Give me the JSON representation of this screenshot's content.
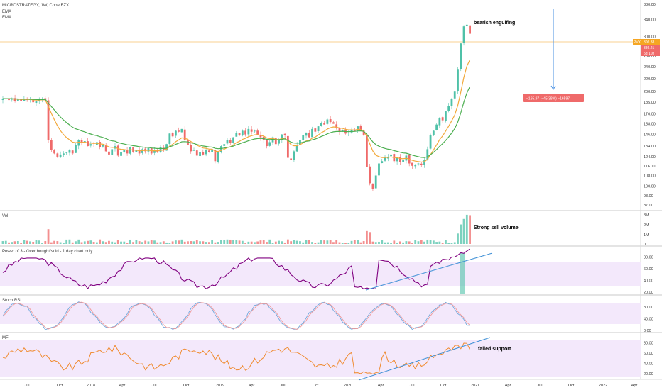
{
  "chart_title": "MICROSTRATEGY, 1W, Cboe BZX",
  "overlay_labels": [
    "EMA",
    "EMA"
  ],
  "colors": {
    "up": "#4fc1a8",
    "down": "#ef6a6a",
    "ema_fast": "#f2a93b",
    "ema_slow": "#4caf50",
    "power": "#800080",
    "stoch_k": "#6fa8dc",
    "stoch_d": "#ef9a9a",
    "mfi": "#f08a2e",
    "band": "#f3e8fb",
    "trendline": "#3d8fd6",
    "measure": "#4a90e2",
    "price_line": "#f5a623",
    "measure_label_bg": "#ef6a6a"
  },
  "annotations": {
    "main": "bearish engulfing",
    "volume": "Strong sell volume",
    "mfi": "failed support",
    "measure": "−165.97 (−45.38%) −16597"
  },
  "price_tags": {
    "last": "306.38",
    "second": "386.21",
    "third": "5d 10h",
    "prefix": "PVX"
  },
  "time_axis": [
    "Jul",
    "Oct",
    "2018",
    "Apr",
    "Jul",
    "Oct",
    "2019",
    "Apr",
    "Jul",
    "Oct",
    "2020",
    "Apr",
    "Jul",
    "Oct",
    "2021",
    "Apr",
    "Jul",
    "Oct",
    "2022",
    "Apr"
  ],
  "panes": {
    "volume": {
      "title": "Vol",
      "ticks": [
        "3M",
        "2M",
        "1M",
        "0"
      ]
    },
    "power": {
      "title": "Power of 3 - Over bought/sold - 1 day chart only",
      "ticks": [
        "80.00",
        "60.00",
        "40.00",
        "20.00"
      ]
    },
    "stoch": {
      "title": "Stoch RSI",
      "ticks": [
        "80.00",
        "40.00",
        "0.00"
      ]
    },
    "mfi": {
      "title": "MFI",
      "ticks": [
        "80.00",
        "60.00",
        "40.00",
        "20.00"
      ]
    }
  },
  "chart_data": {
    "type": "candlestick",
    "title": "MICROSTRATEGY, 1W, Cboe BZX",
    "price_axis_ticks": [
      380,
      340,
      300,
      260,
      240,
      220,
      200,
      185,
      170,
      158,
      146,
      134,
      124,
      116,
      108,
      100,
      93,
      87
    ],
    "price_scale": "log",
    "y_range": [
      82,
      390
    ],
    "last_price": 306.38,
    "closes": [
      190,
      190,
      188,
      190,
      187,
      189,
      187,
      190,
      188,
      189,
      185,
      187,
      188,
      190,
      188,
      140,
      130,
      127,
      124,
      126,
      127,
      128,
      130,
      127,
      135,
      140,
      137,
      139,
      134,
      136,
      135,
      138,
      133,
      135,
      129,
      126,
      131,
      134,
      125,
      128,
      130,
      127,
      133,
      128,
      130,
      127,
      131,
      129,
      132,
      127,
      130,
      128,
      133,
      130,
      136,
      147,
      144,
      150,
      149,
      152,
      140,
      135,
      129,
      130,
      125,
      128,
      126,
      130,
      128,
      131,
      120,
      128,
      134,
      136,
      140,
      137,
      143,
      148,
      145,
      150,
      146,
      152,
      149,
      150,
      146,
      143,
      140,
      134,
      138,
      143,
      136,
      140,
      146,
      145,
      123,
      121,
      129,
      135,
      140,
      145,
      148,
      143,
      152,
      149,
      155,
      159,
      157,
      163,
      160,
      158,
      153,
      149,
      151,
      147,
      148,
      151,
      150,
      155,
      150,
      145,
      115,
      102,
      98,
      108,
      118,
      120,
      123,
      124,
      126,
      120,
      123,
      119,
      121,
      125,
      118,
      116,
      117,
      118,
      117,
      121,
      131,
      145,
      150,
      157,
      165,
      162,
      173,
      180,
      190,
      200,
      235,
      285,
      323,
      327,
      306
    ]
  }
}
